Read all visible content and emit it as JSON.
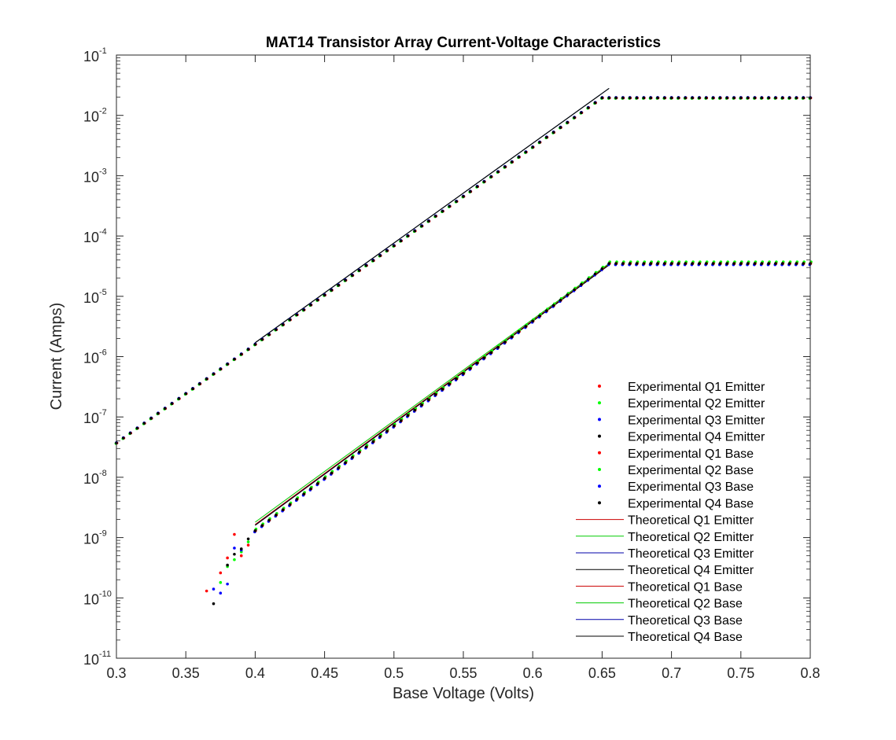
{
  "chart_data": {
    "type": "scatter",
    "title": "MAT14 Transistor Array Current-Voltage Characteristics",
    "xlabel": "Base Voltage (Volts)",
    "ylabel": "Current (Amps)",
    "xlim": [
      0.3,
      0.8
    ],
    "ylim": [
      1e-11,
      0.1
    ],
    "yscale": "log",
    "grid": false,
    "legend_position": "lower-right",
    "x_ticks": [
      "0.3",
      "0.35",
      "0.4",
      "0.45",
      "0.5",
      "0.55",
      "0.6",
      "0.65",
      "0.7",
      "0.75",
      "0.8"
    ],
    "y_ticks": [
      {
        "base": "10",
        "exp": "-11"
      },
      {
        "base": "10",
        "exp": "-10"
      },
      {
        "base": "10",
        "exp": "-9"
      },
      {
        "base": "10",
        "exp": "-8"
      },
      {
        "base": "10",
        "exp": "-7"
      },
      {
        "base": "10",
        "exp": "-6"
      },
      {
        "base": "10",
        "exp": "-5"
      },
      {
        "base": "10",
        "exp": "-4"
      },
      {
        "base": "10",
        "exp": "-3"
      },
      {
        "base": "10",
        "exp": "-2"
      },
      {
        "base": "10",
        "exp": "-1"
      }
    ],
    "experimental_emitter": {
      "v_start": 0.3,
      "v_step": 0.005,
      "v_saturation": 0.65,
      "v_end": 0.8,
      "i_start": 3.7e-08,
      "i_saturation": 0.0195
    },
    "experimental_base": {
      "v_start": 0.4,
      "v_step": 0.005,
      "v_saturation": 0.655,
      "v_end": 0.8,
      "i_start": 1.3e-09,
      "i_saturation": 3.5e-05
    },
    "experimental_base_low": [
      {
        "series": "Experimental Q1 Base",
        "points": [
          [
            0.365,
            1.3e-10
          ],
          [
            0.375,
            2.6e-10
          ],
          [
            0.38,
            4.6e-10
          ],
          [
            0.385,
            1.13e-09
          ],
          [
            0.39,
            5e-10
          ],
          [
            0.395,
            7.5e-10
          ]
        ]
      },
      {
        "series": "Experimental Q2 Base",
        "points": [
          [
            0.375,
            1.8e-10
          ],
          [
            0.38,
            3.3e-10
          ],
          [
            0.385,
            4.3e-10
          ],
          [
            0.39,
            5.8e-10
          ],
          [
            0.395,
            8.5e-10
          ]
        ]
      },
      {
        "series": "Experimental Q3 Base",
        "points": [
          [
            0.37,
            1.4e-10
          ],
          [
            0.375,
            1.2e-10
          ],
          [
            0.38,
            1.7e-10
          ],
          [
            0.385,
            6.7e-10
          ],
          [
            0.39,
            6.2e-10
          ]
        ]
      },
      {
        "series": "Experimental Q4 Base",
        "points": [
          [
            0.37,
            8e-11
          ],
          [
            0.38,
            3.5e-10
          ],
          [
            0.385,
            5.3e-10
          ],
          [
            0.39,
            6.5e-10
          ],
          [
            0.395,
            9.5e-10
          ]
        ]
      }
    ],
    "theoretical_lines": [
      {
        "name": "Theoretical Q1 Emitter",
        "color": "#cc0000",
        "x": [
          0.4,
          0.655
        ],
        "y": [
          1.7e-06,
          0.028
        ]
      },
      {
        "name": "Theoretical Q2 Emitter",
        "color": "#00cc00",
        "x": [
          0.4,
          0.655
        ],
        "y": [
          1.7e-06,
          0.028
        ]
      },
      {
        "name": "Theoretical Q3 Emitter",
        "color": "#0000aa",
        "x": [
          0.4,
          0.655
        ],
        "y": [
          1.7e-06,
          0.028
        ]
      },
      {
        "name": "Theoretical Q4 Emitter",
        "color": "#000000",
        "x": [
          0.4,
          0.655
        ],
        "y": [
          1.7e-06,
          0.028
        ]
      },
      {
        "name": "Theoretical Q1 Base",
        "color": "#cc0000",
        "x": [
          0.4,
          0.655
        ],
        "y": [
          1.65e-09,
          3.4e-05
        ]
      },
      {
        "name": "Theoretical Q2 Base",
        "color": "#00cc00",
        "x": [
          0.4,
          0.655
        ],
        "y": [
          1.8e-09,
          3.5e-05
        ]
      },
      {
        "name": "Theoretical Q3 Base",
        "color": "#0000aa",
        "x": [
          0.4,
          0.655
        ],
        "y": [
          1.6e-09,
          3.3e-05
        ]
      },
      {
        "name": "Theoretical Q4 Base",
        "color": "#000000",
        "x": [
          0.4,
          0.655
        ],
        "y": [
          1.6e-09,
          3.3e-05
        ]
      }
    ],
    "legend": [
      {
        "label": "Experimental Q1 Emitter",
        "kind": "marker",
        "color": "#ff0000"
      },
      {
        "label": " Experimental Q2 Emitter",
        "kind": "marker",
        "color": "#00ff00"
      },
      {
        "label": "Experimental Q3 Emitter",
        "kind": "marker",
        "color": "#0000ff"
      },
      {
        "label": "Experimental Q4 Emitter",
        "kind": "marker",
        "color": "#000000"
      },
      {
        "label": "Experimental Q1 Base",
        "kind": "marker",
        "color": "#ff0000"
      },
      {
        "label": "Experimental Q2 Base",
        "kind": "marker",
        "color": "#00ff00"
      },
      {
        "label": "Experimental Q3 Base",
        "kind": "marker",
        "color": "#0000ff"
      },
      {
        "label": "Experimental Q4 Base",
        "kind": "marker",
        "color": "#000000"
      },
      {
        "label": "Theoretical Q1 Emitter",
        "kind": "line",
        "color": "#cc0000"
      },
      {
        "label": " Theoretical Q2 Emitter",
        "kind": "line",
        "color": "#00cc00"
      },
      {
        "label": "Theoretical Q3 Emitter",
        "kind": "line",
        "color": "#0000aa"
      },
      {
        "label": "Theoretical Q4 Emitter",
        "kind": "line",
        "color": "#000000"
      },
      {
        "label": "Theoretical Q1 Base",
        "kind": "line",
        "color": "#cc0000"
      },
      {
        "label": "Theoretical Q2 Base",
        "kind": "line",
        "color": "#00cc00"
      },
      {
        "label": "Theoretical Q3 Base",
        "kind": "line",
        "color": "#0000aa"
      },
      {
        "label": "Theoretical Q4 Base",
        "kind": "line",
        "color": "#000000"
      }
    ]
  }
}
